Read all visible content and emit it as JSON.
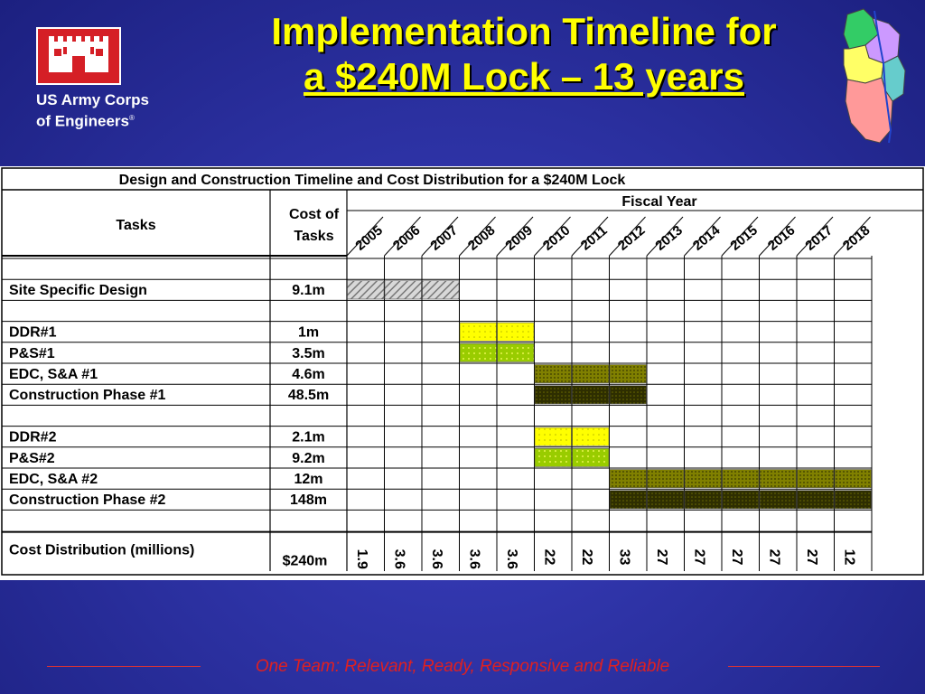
{
  "header": {
    "title_line1": "Implementation Timeline for",
    "title_line2": "a $240M Lock – 13 years",
    "org_line1": "US Army Corps",
    "org_line2": "of Engineers",
    "org_mark": "®"
  },
  "table": {
    "caption": "Design and Construction Timeline and Cost Distribution for a $240M Lock",
    "col_tasks": "Tasks",
    "col_cost_line1": "Cost of",
    "col_cost_line2": "Tasks",
    "fiscal_year_label": "Fiscal Year",
    "years": [
      "2005",
      "2006",
      "2007",
      "2008",
      "2009",
      "2010",
      "2011",
      "2012",
      "2013",
      "2014",
      "2015",
      "2016",
      "2017",
      "2018"
    ],
    "tasks": [
      {
        "name": "",
        "cost": ""
      },
      {
        "name": "Site Specific Design",
        "cost": "9.1m"
      },
      {
        "name": "",
        "cost": ""
      },
      {
        "name": "DDR#1",
        "cost": "1m"
      },
      {
        "name": "P&S#1",
        "cost": "3.5m"
      },
      {
        "name": "EDC, S&A #1",
        "cost": "4.6m"
      },
      {
        "name": "Construction Phase #1",
        "cost": "48.5m"
      },
      {
        "name": "",
        "cost": ""
      },
      {
        "name": "DDR#2",
        "cost": "2.1m"
      },
      {
        "name": "P&S#2",
        "cost": "9.2m"
      },
      {
        "name": "EDC, S&A #2",
        "cost": "12m"
      },
      {
        "name": "Construction Phase #2",
        "cost": "148m"
      },
      {
        "name": "",
        "cost": ""
      }
    ],
    "bars": [
      {
        "row": 1,
        "start": 0,
        "span": 3,
        "style": "hatch"
      },
      {
        "row": 3,
        "start": 3,
        "span": 2,
        "style": "yellow"
      },
      {
        "row": 4,
        "start": 3,
        "span": 2,
        "style": "green"
      },
      {
        "row": 5,
        "start": 5,
        "span": 3,
        "style": "olive"
      },
      {
        "row": 6,
        "start": 5,
        "span": 3,
        "style": "dark"
      },
      {
        "row": 8,
        "start": 5,
        "span": 2,
        "style": "yellow"
      },
      {
        "row": 9,
        "start": 5,
        "span": 2,
        "style": "green"
      },
      {
        "row": 10,
        "start": 7,
        "span": 7,
        "style": "olive"
      },
      {
        "row": 11,
        "start": 7,
        "span": 7,
        "style": "dark"
      }
    ],
    "distribution_label": "Cost Distribution (millions)",
    "distribution_total": "$240m",
    "distribution_values": [
      "1.9",
      "3.6",
      "3.6",
      "3.6",
      "3.6",
      "22",
      "22",
      "33",
      "27",
      "27",
      "27",
      "27",
      "27",
      "12"
    ]
  },
  "footer": {
    "tagline": "One Team:  Relevant, Ready, Responsive and Reliable"
  },
  "colors": {
    "background": "#2a2f9e",
    "title": "#ffff00",
    "footer_text": "#e02020",
    "logo_red": "#d51f26",
    "yellow_bar": "#ffff00",
    "green_bar": "#99cc00",
    "olive_bar": "#808000",
    "dark_bar": "#333300"
  }
}
